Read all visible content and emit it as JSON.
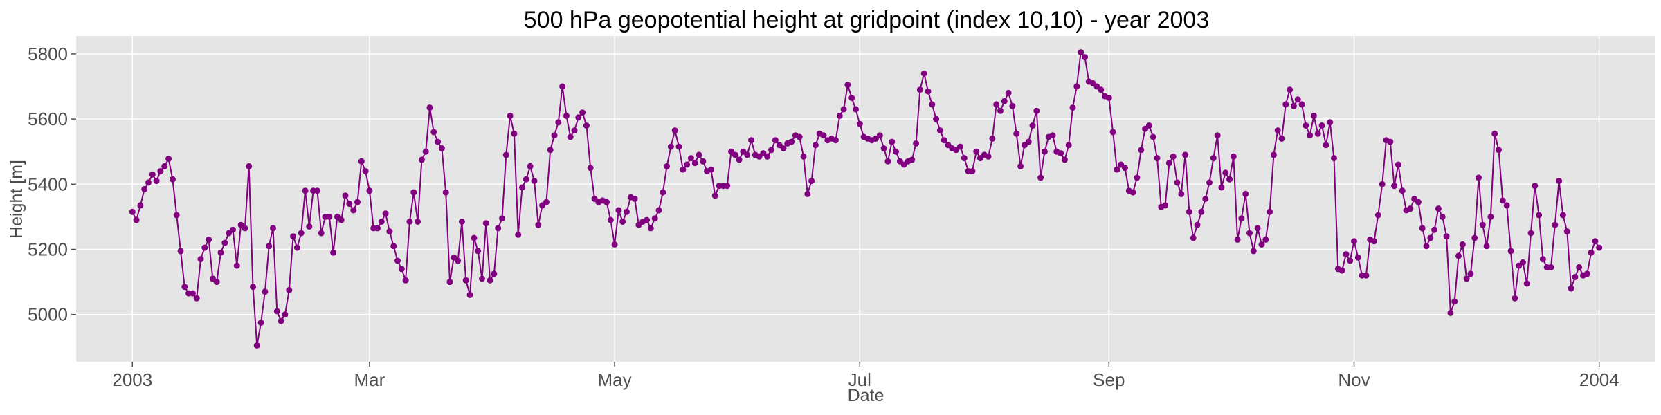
{
  "chart_data": {
    "type": "line",
    "title": "500 hPa geopotential height at gridpoint (index 10,10) - year 2003",
    "xlabel": "Date",
    "ylabel": "Height [m]",
    "xlim": [
      "2002-12-18",
      "2004-01-15"
    ],
    "ylim": [
      4855,
      5855
    ],
    "x_ticks": [
      {
        "date": "2003-01-01",
        "label": "2003"
      },
      {
        "date": "2003-03-01",
        "label": "Mar"
      },
      {
        "date": "2003-05-01",
        "label": "May"
      },
      {
        "date": "2003-07-01",
        "label": "Jul"
      },
      {
        "date": "2003-09-01",
        "label": "Sep"
      },
      {
        "date": "2003-11-01",
        "label": "Nov"
      },
      {
        "date": "2004-01-01",
        "label": "2004"
      }
    ],
    "y_ticks": [
      5000,
      5200,
      5400,
      5600,
      5800
    ],
    "grid": true,
    "colors": {
      "line": "#800080",
      "marker": "#800080",
      "background": "#e5e5e5",
      "grid": "#ffffff"
    },
    "series": [
      {
        "start_date": "2003-01-01",
        "frequency": "daily",
        "values": [
          5315,
          5290,
          5335,
          5385,
          5405,
          5430,
          5410,
          5440,
          5455,
          5478,
          5415,
          5305,
          5195,
          5085,
          5065,
          5065,
          5050,
          5170,
          5205,
          5230,
          5110,
          5100,
          5190,
          5220,
          5250,
          5260,
          5150,
          5275,
          5265,
          5455,
          5085,
          4905,
          4975,
          5070,
          5210,
          5265,
          5010,
          4980,
          5000,
          5075,
          5240,
          5205,
          5250,
          5380,
          5270,
          5380,
          5380,
          5250,
          5300,
          5300,
          5190,
          5300,
          5290,
          5365,
          5340,
          5320,
          5345,
          5470,
          5440,
          5380,
          5265,
          5265,
          5285,
          5310,
          5255,
          5210,
          5165,
          5140,
          5105,
          5285,
          5375,
          5285,
          5475,
          5500,
          5635,
          5560,
          5530,
          5510,
          5375,
          5100,
          5175,
          5165,
          5285,
          5105,
          5060,
          5235,
          5195,
          5110,
          5280,
          5105,
          5125,
          5265,
          5295,
          5490,
          5610,
          5555,
          5245,
          5390,
          5415,
          5455,
          5410,
          5275,
          5335,
          5345,
          5505,
          5550,
          5590,
          5700,
          5610,
          5545,
          5565,
          5605,
          5620,
          5580,
          5450,
          5355,
          5345,
          5350,
          5345,
          5290,
          5215,
          5320,
          5285,
          5315,
          5360,
          5355,
          5275,
          5285,
          5290,
          5265,
          5295,
          5320,
          5375,
          5455,
          5515,
          5565,
          5515,
          5445,
          5460,
          5480,
          5465,
          5490,
          5470,
          5440,
          5445,
          5365,
          5395,
          5395,
          5395,
          5500,
          5490,
          5475,
          5500,
          5490,
          5535,
          5490,
          5485,
          5495,
          5485,
          5505,
          5535,
          5520,
          5510,
          5525,
          5530,
          5550,
          5545,
          5485,
          5370,
          5410,
          5520,
          5555,
          5550,
          5535,
          5540,
          5535,
          5610,
          5630,
          5705,
          5665,
          5630,
          5585,
          5545,
          5540,
          5535,
          5540,
          5550,
          5510,
          5470,
          5530,
          5500,
          5470,
          5460,
          5470,
          5475,
          5525,
          5690,
          5740,
          5685,
          5645,
          5600,
          5565,
          5535,
          5520,
          5510,
          5505,
          5515,
          5480,
          5440,
          5440,
          5500,
          5480,
          5490,
          5485,
          5540,
          5645,
          5625,
          5655,
          5680,
          5640,
          5555,
          5455,
          5520,
          5530,
          5580,
          5625,
          5420,
          5500,
          5545,
          5550,
          5500,
          5495,
          5475,
          5520,
          5635,
          5700,
          5805,
          5790,
          5715,
          5710,
          5700,
          5690,
          5670,
          5665,
          5560,
          5445,
          5460,
          5450,
          5380,
          5375,
          5420,
          5505,
          5570,
          5580,
          5545,
          5480,
          5330,
          5335,
          5465,
          5485,
          5405,
          5370,
          5490,
          5315,
          5235,
          5275,
          5315,
          5355,
          5405,
          5480,
          5550,
          5390,
          5435,
          5415,
          5485,
          5230,
          5295,
          5370,
          5250,
          5195,
          5265,
          5215,
          5230,
          5315,
          5490,
          5565,
          5540,
          5645,
          5690,
          5640,
          5660,
          5645,
          5580,
          5550,
          5610,
          5555,
          5580,
          5520,
          5590,
          5480,
          5140,
          5135,
          5185,
          5165,
          5225,
          5175,
          5120,
          5120,
          5230,
          5225,
          5305,
          5400,
          5535,
          5530,
          5395,
          5460,
          5380,
          5320,
          5325,
          5355,
          5345,
          5265,
          5210,
          5235,
          5260,
          5325,
          5300,
          5240,
          5005,
          5040,
          5180,
          5215,
          5110,
          5125,
          5235,
          5420,
          5275,
          5210,
          5300,
          5555,
          5505,
          5350,
          5335,
          5195,
          5050,
          5150,
          5160,
          5095,
          5250,
          5395,
          5305,
          5170,
          5145,
          5145,
          5275,
          5410,
          5305,
          5255,
          5080,
          5115,
          5145,
          5120,
          5125,
          5190,
          5225,
          5205
        ]
      }
    ]
  }
}
